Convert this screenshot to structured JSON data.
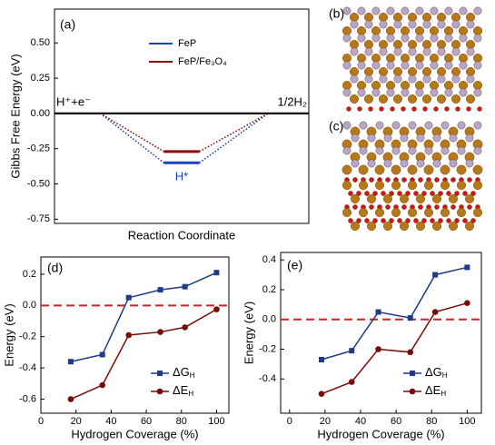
{
  "chart_data": [
    {
      "type": "energy_diagram",
      "panel_label": "(a)",
      "ylabel": "Gibbs Free Energy (eV)",
      "xlabel": "Reaction Coordinate",
      "categories": [
        "H⁺+e⁻",
        "H*",
        "1/2H₂"
      ],
      "series": [
        {
          "name": "FeP",
          "color": "#1c3fc4",
          "values": [
            0,
            -0.35,
            0
          ]
        },
        {
          "name": "FeP/Fe₃O₄",
          "color": "#8b0a0a",
          "values": [
            0,
            -0.27,
            0
          ]
        }
      ],
      "level_color": "#000000",
      "ylim": [
        -0.78,
        0.74
      ],
      "yticks": [
        {
          "value": 0.5,
          "label": "0.50"
        },
        0.25,
        {
          "value": 0,
          "label": "0.00"
        },
        -0.25,
        {
          "value": -0.5,
          "label": "-0.50"
        },
        -0.75
      ]
    },
    {
      "type": "line",
      "panel_label": "(d)",
      "xlabel": "Hydrogen Coverage (%)",
      "ylabel": "Energy (eV)",
      "x": [
        17,
        35,
        50,
        68,
        82,
        100
      ],
      "series": [
        {
          "name": "ΔGH",
          "color": "#1f3a8a",
          "marker": "square",
          "values": [
            -0.36,
            -0.315,
            0.05,
            0.1,
            0.12,
            0.21
          ]
        },
        {
          "name": "ΔEH",
          "color": "#7a0a0a",
          "marker": "circle",
          "values": [
            -0.6,
            -0.51,
            -0.19,
            -0.17,
            -0.14,
            -0.025
          ]
        }
      ],
      "reference_line": {
        "y": 0,
        "color": "#e41a1a"
      },
      "xlim": [
        0,
        107
      ],
      "ylim": [
        -0.69,
        0.31
      ],
      "xticks": [
        0,
        20,
        40,
        60,
        80,
        100
      ],
      "yticks": [
        0.2,
        {
          "value": 0,
          "label": "0.0"
        },
        -0.2,
        -0.4,
        -0.6
      ],
      "legend": "lower right"
    },
    {
      "type": "line",
      "panel_label": "(e)",
      "xlabel": "Hydrogen Coverage (%)",
      "ylabel": "Energy (eV)",
      "x": [
        18,
        35,
        50,
        68,
        82,
        100
      ],
      "series": [
        {
          "name": "ΔGH",
          "color": "#1f3a8a",
          "marker": "square",
          "values": [
            -0.27,
            -0.21,
            0.05,
            0.01,
            0.3,
            0.35
          ]
        },
        {
          "name": "ΔEH",
          "color": "#7a0a0a",
          "marker": "circle",
          "values": [
            -0.5,
            -0.42,
            -0.2,
            -0.22,
            0.05,
            0.11
          ]
        }
      ],
      "reference_line": {
        "y": 0,
        "color": "#e41a1a"
      },
      "xlim": [
        -5,
        108
      ],
      "ylim": [
        -0.63,
        0.45
      ],
      "xticks": [
        0,
        20,
        40,
        60,
        80,
        100
      ],
      "yticks": [
        0.4,
        0.2,
        {
          "value": 0,
          "label": "0.0"
        },
        -0.2,
        -0.4
      ],
      "legend": "lower right"
    }
  ],
  "structures": [
    {
      "label": "(b)"
    },
    {
      "label": "(c)"
    }
  ]
}
